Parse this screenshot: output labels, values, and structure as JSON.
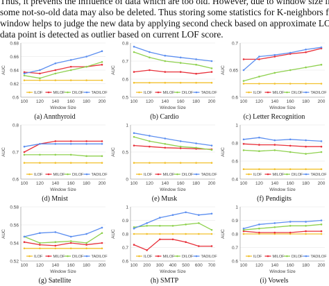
{
  "intro_text": [
    "Thus, it prevents the influence of data which are too old. However, due to window size limitation",
    "some not-so-old data may also be deleted. Thus storing some statistics for K-neighbors from previous",
    "window helps to judge the new data by applying second check based on approximate LOF if the new",
    "data point is detected as outlier based on current LOF score."
  ],
  "colors": {
    "ILOF": "#f2c12e",
    "MILOF": "#e8303a",
    "DILOF": "#8fd14f",
    "TADILOF": "#5b8ef0"
  },
  "chart_data": [
    {
      "type": "line",
      "caption": "(a) Annthyroid",
      "ylabel": "AUC",
      "xlabel": "Window Size",
      "x": [
        100,
        120,
        140,
        160,
        180,
        200
      ],
      "ylim": [
        0.6,
        0.68
      ],
      "yticks": [
        "0.6",
        "0.62",
        "0.64",
        "0.66",
        "0.68"
      ],
      "legend_position": "bottom",
      "series": [
        {
          "name": "ILOF",
          "values": [
            0.625,
            0.625,
            0.625,
            0.625,
            0.625,
            0.625
          ]
        },
        {
          "name": "MILOF",
          "values": [
            0.637,
            0.635,
            0.64,
            0.645,
            0.645,
            0.648
          ]
        },
        {
          "name": "DILOF",
          "values": [
            0.632,
            0.628,
            0.635,
            0.64,
            0.645,
            0.652
          ]
        },
        {
          "name": "TADILOF",
          "values": [
            0.635,
            0.64,
            0.65,
            0.655,
            0.66,
            0.668
          ]
        }
      ]
    },
    {
      "type": "line",
      "caption": "(b) Cardio",
      "ylabel": "AUC",
      "xlabel": "Window Size",
      "x": [
        100,
        120,
        140,
        160,
        180,
        200
      ],
      "ylim": [
        0.5,
        0.8
      ],
      "yticks": [
        "0.5",
        "0.6",
        "0.7",
        "0.8"
      ],
      "legend_position": "bottom",
      "series": [
        {
          "name": "ILOF",
          "values": [
            0.58,
            0.58,
            0.58,
            0.58,
            0.58,
            0.58
          ]
        },
        {
          "name": "MILOF",
          "values": [
            0.64,
            0.65,
            0.64,
            0.64,
            0.63,
            0.64
          ]
        },
        {
          "name": "DILOF",
          "values": [
            0.75,
            0.72,
            0.7,
            0.69,
            0.68,
            0.66
          ]
        },
        {
          "name": "TADILOF",
          "values": [
            0.78,
            0.75,
            0.73,
            0.72,
            0.71,
            0.7
          ]
        }
      ]
    },
    {
      "type": "line",
      "caption": "(c) Letter Recognition",
      "ylabel": "AUC",
      "xlabel": "Window Size",
      "x": [
        100,
        120,
        140,
        160,
        180,
        200
      ],
      "ylim": [
        0.6,
        0.7
      ],
      "yticks": [
        "0.6",
        "0.65",
        "0.7"
      ],
      "legend_position": "bottom",
      "series": [
        {
          "name": "ILOF",
          "values": [
            0.625,
            0.625,
            0.625,
            0.625,
            0.625,
            0.625
          ]
        },
        {
          "name": "MILOF",
          "values": [
            0.67,
            0.67,
            0.675,
            0.68,
            0.683,
            0.69
          ]
        },
        {
          "name": "DILOF",
          "values": [
            0.63,
            0.638,
            0.645,
            0.65,
            0.655,
            0.66
          ]
        },
        {
          "name": "TADILOF",
          "values": [
            0.65,
            0.675,
            0.678,
            0.682,
            0.688,
            0.692
          ]
        }
      ]
    },
    {
      "type": "line",
      "caption": "(d) Mnist",
      "ylabel": "AUC",
      "xlabel": "Window Size",
      "x": [
        100,
        120,
        140,
        160,
        180,
        200
      ],
      "ylim": [
        0.6,
        0.8
      ],
      "yticks": [
        "0.6",
        "0.7",
        "0.8"
      ],
      "legend_position": "bottom",
      "series": [
        {
          "name": "ILOF",
          "values": [
            0.66,
            0.66,
            0.66,
            0.66,
            0.66,
            0.66
          ]
        },
        {
          "name": "MILOF",
          "values": [
            0.7,
            0.73,
            0.74,
            0.74,
            0.74,
            0.74
          ]
        },
        {
          "name": "DILOF",
          "values": [
            0.69,
            0.69,
            0.69,
            0.69,
            0.685,
            0.685
          ]
        },
        {
          "name": "TADILOF",
          "values": [
            0.72,
            0.73,
            0.73,
            0.73,
            0.73,
            0.73
          ]
        }
      ]
    },
    {
      "type": "line",
      "caption": "(e) Musk",
      "ylabel": "AUC",
      "xlabel": "Window Size",
      "x": [
        100,
        120,
        140,
        160,
        180,
        200
      ],
      "ylim": [
        0,
        1
      ],
      "yticks": [
        "0",
        "0.5",
        "1"
      ],
      "legend_position": "bottom",
      "series": [
        {
          "name": "ILOF",
          "values": [
            0.3,
            0.3,
            0.3,
            0.3,
            0.3,
            0.3
          ]
        },
        {
          "name": "MILOF",
          "values": [
            0.62,
            0.6,
            0.58,
            0.57,
            0.56,
            0.55
          ]
        },
        {
          "name": "DILOF",
          "values": [
            0.78,
            0.7,
            0.65,
            0.6,
            0.58,
            0.54
          ]
        },
        {
          "name": "TADILOF",
          "values": [
            0.85,
            0.8,
            0.75,
            0.7,
            0.66,
            0.62
          ]
        }
      ]
    },
    {
      "type": "line",
      "caption": "(f) Pendigits",
      "ylabel": "AUC",
      "xlabel": "Window Size",
      "x": [
        100,
        120,
        140,
        160,
        180,
        200
      ],
      "ylim": [
        0.4,
        1
      ],
      "yticks": [
        "0.4",
        "0.6",
        "0.8",
        "1"
      ],
      "legend_position": "bottom",
      "series": [
        {
          "name": "ILOF",
          "values": [
            0.51,
            0.51,
            0.51,
            0.51,
            0.51,
            0.51
          ]
        },
        {
          "name": "MILOF",
          "values": [
            0.79,
            0.78,
            0.78,
            0.77,
            0.76,
            0.76
          ]
        },
        {
          "name": "DILOF",
          "values": [
            0.72,
            0.71,
            0.72,
            0.7,
            0.68,
            0.7
          ]
        },
        {
          "name": "TADILOF",
          "values": [
            0.84,
            0.86,
            0.83,
            0.84,
            0.83,
            0.82
          ]
        }
      ]
    },
    {
      "type": "line",
      "caption": "(g) Satellite",
      "ylabel": "AUC",
      "xlabel": "Window Size",
      "x": [
        100,
        120,
        140,
        160,
        180,
        200
      ],
      "ylim": [
        0.52,
        0.58
      ],
      "yticks": [
        "0.52",
        "0.54",
        "0.56",
        "0.58"
      ],
      "legend_position": "bottom",
      "series": [
        {
          "name": "ILOF",
          "values": [
            0.534,
            0.534,
            0.534,
            0.534,
            0.534,
            0.534
          ]
        },
        {
          "name": "MILOF",
          "values": [
            0.541,
            0.538,
            0.537,
            0.54,
            0.538,
            0.54
          ]
        },
        {
          "name": "DILOF",
          "values": [
            0.547,
            0.54,
            0.541,
            0.542,
            0.54,
            0.551
          ]
        },
        {
          "name": "TADILOF",
          "values": [
            0.547,
            0.551,
            0.552,
            0.547,
            0.55,
            0.557
          ]
        }
      ]
    },
    {
      "type": "line",
      "caption": "(h) SMTP",
      "ylabel": "AUC",
      "xlabel": "Window Size",
      "x": [
        100,
        200,
        300,
        400,
        500,
        600,
        700
      ],
      "ylim": [
        0.6,
        1
      ],
      "yticks": [
        "0.6",
        "0.7",
        "0.8",
        "0.9",
        "1"
      ],
      "legend_position": "bottom",
      "series": [
        {
          "name": "ILOF",
          "values": [
            0.8,
            0.8,
            0.8,
            0.8,
            0.8,
            0.8,
            0.8
          ]
        },
        {
          "name": "MILOF",
          "values": [
            0.72,
            0.68,
            0.76,
            0.76,
            0.74,
            0.71,
            0.71
          ]
        },
        {
          "name": "DILOF",
          "values": [
            0.85,
            0.86,
            0.86,
            0.86,
            0.87,
            0.88,
            0.83
          ]
        },
        {
          "name": "TADILOF",
          "values": [
            0.84,
            0.88,
            0.92,
            0.94,
            0.96,
            0.94,
            0.95
          ]
        }
      ]
    },
    {
      "type": "line",
      "caption": "(i) Vowels",
      "ylabel": "AUC",
      "xlabel": "Window Size",
      "x": [
        100,
        120,
        140,
        160,
        180,
        200
      ],
      "ylim": [
        0.6,
        1
      ],
      "yticks": [
        "0.6",
        "0.7",
        "0.8",
        "0.9",
        "1"
      ],
      "legend_position": "bottom",
      "series": [
        {
          "name": "ILOF",
          "values": [
            0.8,
            0.8,
            0.8,
            0.8,
            0.8,
            0.8
          ]
        },
        {
          "name": "MILOF",
          "values": [
            0.82,
            0.81,
            0.81,
            0.81,
            0.82,
            0.82
          ]
        },
        {
          "name": "DILOF",
          "values": [
            0.83,
            0.84,
            0.85,
            0.86,
            0.86,
            0.87
          ]
        },
        {
          "name": "TADILOF",
          "values": [
            0.84,
            0.87,
            0.88,
            0.89,
            0.89,
            0.9
          ]
        }
      ]
    }
  ]
}
